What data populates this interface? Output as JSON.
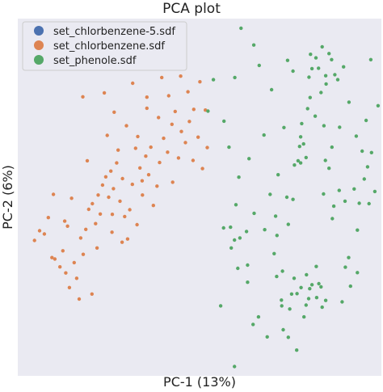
{
  "chart_data": {
    "type": "scatter",
    "title": "PCA plot",
    "xlabel": "PC-1 (13%)",
    "ylabel": "PC-2 (6%)",
    "xlim": [
      0,
      100
    ],
    "ylim": [
      0,
      100
    ],
    "grid": false,
    "tick_labels": false,
    "legend_position": "top-left",
    "background": "#eaeaf2",
    "series": [
      {
        "name": "set_chlorbenzene-5.sdf",
        "color": "#4c72b0",
        "points": []
      },
      {
        "name": "set_chlorbenzene.sdf",
        "color": "#dd8452",
        "points": [
          [
            4.6,
            37.9
          ],
          [
            6.0,
            40.6
          ],
          [
            7.3,
            39.7
          ],
          [
            8.4,
            44.3
          ],
          [
            9.4,
            33.1
          ],
          [
            10.2,
            32.7
          ],
          [
            11.6,
            30.5
          ],
          [
            12.4,
            35.0
          ],
          [
            13.2,
            28.8
          ],
          [
            14.2,
            24.7
          ],
          [
            14.8,
            49.7
          ],
          [
            15.5,
            31.7
          ],
          [
            16.2,
            27.3
          ],
          [
            17.3,
            38.6
          ],
          [
            18.0,
            34.0
          ],
          [
            18.7,
            41.0
          ],
          [
            19.5,
            46.6
          ],
          [
            20.5,
            48.2
          ],
          [
            21.4,
            42.6
          ],
          [
            22.1,
            50.6
          ],
          [
            22.7,
            45.3
          ],
          [
            23.3,
            53.4
          ],
          [
            24.2,
            55.7
          ],
          [
            25.0,
            50.0
          ],
          [
            25.6,
            57.3
          ],
          [
            26.3,
            52.4
          ],
          [
            27.2,
            59.6
          ],
          [
            28.1,
            48.9
          ],
          [
            28.8,
            55.2
          ],
          [
            29.4,
            44.6
          ],
          [
            30.2,
            38.3
          ],
          [
            30.8,
            46.5
          ],
          [
            31.5,
            53.6
          ],
          [
            32.4,
            63.7
          ],
          [
            33.0,
            67.0
          ],
          [
            33.6,
            58.2
          ],
          [
            34.3,
            50.6
          ],
          [
            35.2,
            61.5
          ],
          [
            36.0,
            56.3
          ],
          [
            36.6,
            64.0
          ],
          [
            37.3,
            47.7
          ],
          [
            38.3,
            53.1
          ],
          [
            39.0,
            59.7
          ],
          [
            40.1,
            66.5
          ],
          [
            41.2,
            62.6
          ],
          [
            42.4,
            70.4
          ],
          [
            43.3,
            74.0
          ],
          [
            44.2,
            61.0
          ],
          [
            45.0,
            68.4
          ],
          [
            46.1,
            65.3
          ],
          [
            47.2,
            71.2
          ],
          [
            48.2,
            60.3
          ],
          [
            49.6,
            66.8
          ],
          [
            50.8,
            58.0
          ],
          [
            52.1,
            63.9
          ],
          [
            17.9,
            78.1
          ],
          [
            23.8,
            79.2
          ],
          [
            26.5,
            73.8
          ],
          [
            31.6,
            81.9
          ],
          [
            35.5,
            74.9
          ],
          [
            39.6,
            83.5
          ],
          [
            41.5,
            78.4
          ],
          [
            44.8,
            83.9
          ],
          [
            46.8,
            79.5
          ],
          [
            50.1,
            82.3
          ],
          [
            51.6,
            74.4
          ],
          [
            19.1,
            60.2
          ],
          [
            25.9,
            40.2
          ],
          [
            28.7,
            37.4
          ],
          [
            32.8,
            42.3
          ],
          [
            21.8,
            35.8
          ],
          [
            24.6,
            67.3
          ],
          [
            12.9,
            43.3
          ],
          [
            16.9,
            21.5
          ],
          [
            9.8,
            50.8
          ],
          [
            35.5,
            78.0
          ],
          [
            29.9,
            70.0
          ],
          [
            48.4,
            74.6
          ],
          [
            42.6,
            54.2
          ],
          [
            27.6,
            63.2
          ],
          [
            13.7,
            41.9
          ],
          [
            20.4,
            22.9
          ],
          [
            26.0,
            45.2
          ],
          [
            34.2,
            54.6
          ],
          [
            38.7,
            72.3
          ]
        ]
      },
      {
        "name": "set_phenole.sdf",
        "color": "#55a868",
        "points": [
          [
            61.4,
            97.3
          ],
          [
            64.9,
            92.6
          ],
          [
            66.4,
            86.9
          ],
          [
            69.8,
            80.1
          ],
          [
            74.2,
            88.3
          ],
          [
            59.7,
            83.5
          ],
          [
            53.8,
            82.9
          ],
          [
            52.3,
            74.1
          ],
          [
            56.7,
            71.3
          ],
          [
            58.1,
            64.0
          ],
          [
            60.8,
            55.6
          ],
          [
            63.6,
            60.8
          ],
          [
            67.7,
            67.4
          ],
          [
            71.6,
            56.3
          ],
          [
            74.0,
            50.0
          ],
          [
            74.4,
            42.4
          ],
          [
            75.7,
            49.4
          ],
          [
            69.4,
            50.8
          ],
          [
            71.3,
            39.3
          ],
          [
            70.5,
            34.2
          ],
          [
            72.8,
            29.3
          ],
          [
            75.3,
            22.9
          ],
          [
            78.7,
            16.5
          ],
          [
            80.9,
            25.5
          ],
          [
            76.7,
            7.2
          ],
          [
            65.0,
            45.5
          ],
          [
            62.9,
            40.4
          ],
          [
            59.6,
            38.0
          ],
          [
            58.5,
            41.6
          ],
          [
            56.6,
            41.4
          ],
          [
            61.1,
            38.6
          ],
          [
            55.8,
            19.6
          ],
          [
            63.2,
            26.2
          ],
          [
            63.2,
            31.0
          ],
          [
            60.5,
            30.1
          ],
          [
            80.5,
            90.0
          ],
          [
            82.0,
            89.0
          ],
          [
            82.7,
            86.1
          ],
          [
            83.4,
            79.3
          ],
          [
            84.7,
            84.0
          ],
          [
            84.8,
            81.7
          ],
          [
            86.3,
            88.5
          ],
          [
            88.0,
            82.9
          ],
          [
            87.2,
            84.3
          ],
          [
            85.6,
            90.2
          ],
          [
            80.4,
            77.9
          ],
          [
            79.7,
            74.8
          ],
          [
            78.1,
            70.6
          ],
          [
            77.8,
            66.9
          ],
          [
            79.3,
            61.1
          ],
          [
            80.9,
            86.0
          ],
          [
            81.8,
            72.7
          ],
          [
            84.2,
            70.0
          ],
          [
            84.6,
            60.3
          ],
          [
            84.1,
            50.9
          ],
          [
            85.6,
            58.1
          ],
          [
            88.4,
            51.9
          ],
          [
            90.0,
            48.9
          ],
          [
            92.5,
            52.3
          ],
          [
            93.4,
            40.8
          ],
          [
            95.3,
            55.1
          ],
          [
            96.2,
            58.5
          ],
          [
            97.3,
            62.5
          ],
          [
            98.2,
            51.6
          ],
          [
            96.6,
            48.2
          ],
          [
            93.9,
            48.3
          ],
          [
            91.0,
            33.1
          ],
          [
            93.4,
            28.9
          ],
          [
            91.5,
            25.1
          ],
          [
            90.1,
            30.4
          ],
          [
            76.0,
            27.3
          ],
          [
            77.9,
            24.7
          ],
          [
            80.3,
            24.4
          ],
          [
            82.8,
            25.8
          ],
          [
            82.2,
            21.9
          ],
          [
            83.7,
            19.2
          ],
          [
            79.4,
            28.3
          ],
          [
            80.0,
            21.6
          ],
          [
            76.8,
            23.0
          ],
          [
            72.6,
            19.6
          ],
          [
            71.2,
            27.8
          ],
          [
            74.8,
            18.7
          ],
          [
            82.1,
            30.6
          ],
          [
            73.0,
            12.9
          ],
          [
            74.4,
            10.8
          ],
          [
            68.6,
            10.9
          ],
          [
            64.7,
            14.4
          ],
          [
            66.2,
            16.5
          ],
          [
            72.5,
            21.2
          ],
          [
            83.4,
            24.9
          ],
          [
            84.7,
            21.1
          ],
          [
            79.3,
            19.8
          ],
          [
            89.2,
            20.7
          ],
          [
            86.9,
            47.5
          ],
          [
            94.7,
            62.9
          ],
          [
            99.1,
            75.6
          ],
          [
            97.1,
            88.5
          ],
          [
            93.1,
            67.1
          ],
          [
            88.5,
            69.6
          ],
          [
            86.4,
            64.0
          ],
          [
            77.5,
            64.2
          ],
          [
            77.1,
            60.2
          ],
          [
            76.1,
            59.0
          ],
          [
            77.8,
            59.6
          ],
          [
            78.6,
            64.9
          ],
          [
            89.6,
            86.5
          ],
          [
            91.1,
            76.6
          ],
          [
            95.8,
            71.5
          ],
          [
            86.5,
            44.0
          ],
          [
            59.6,
            2.6
          ],
          [
            70.9,
            44.7
          ],
          [
            67.9,
            40.9
          ],
          [
            60.0,
            47.9
          ],
          [
            58.7,
            35.8
          ],
          [
            83.7,
            92.1
          ],
          [
            80.1,
            83.6
          ],
          [
            75.7,
            85.3
          ],
          [
            73.2,
            69.5
          ]
        ]
      }
    ]
  }
}
